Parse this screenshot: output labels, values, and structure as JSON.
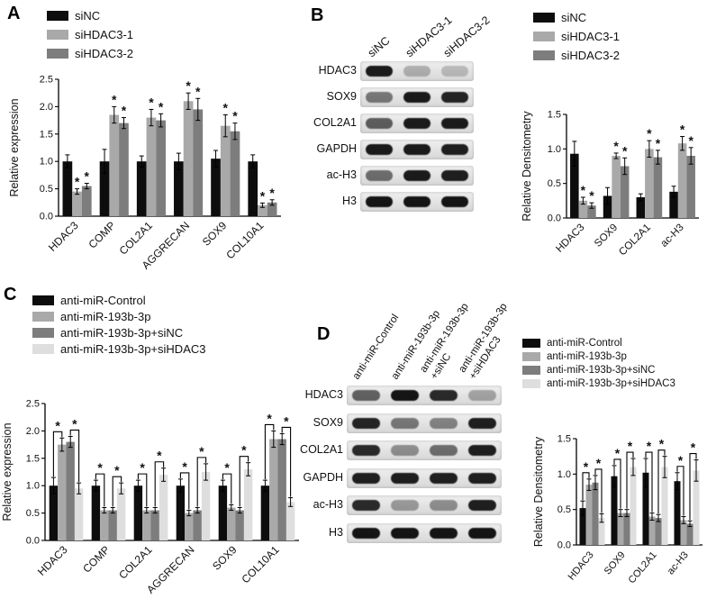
{
  "page": {
    "background": "#ffffff"
  },
  "colors": {
    "series_black": "#0d0d0d",
    "series_gray_light": "#a9a9a9",
    "series_gray_dark": "#7d7d7d",
    "series_gray_pale": "#dedede"
  },
  "panels": {
    "A": {
      "label": "A",
      "legend": [
        {
          "label": "siNC",
          "color": "#0d0d0d"
        },
        {
          "label": "siHDAC3-1",
          "color": "#a9a9a9"
        },
        {
          "label": "siHDAC3-2",
          "color": "#7d7d7d"
        }
      ]
    },
    "B": {
      "label": "B",
      "legend": [
        {
          "label": "siNC",
          "color": "#0d0d0d"
        },
        {
          "label": "siHDAC3-1",
          "color": "#a9a9a9"
        },
        {
          "label": "siHDAC3-2",
          "color": "#7d7d7d"
        }
      ],
      "blot": {
        "lanes": [
          "siNC",
          "siHDAC3-1",
          "siHDAC3-2"
        ],
        "rows": [
          {
            "label": "HDAC3",
            "bands": [
              0.92,
              0.25,
              0.2
            ]
          },
          {
            "label": "SOX9",
            "bands": [
              0.5,
              0.92,
              0.88
            ]
          },
          {
            "label": "COL2A1",
            "bands": [
              0.62,
              0.92,
              0.92
            ]
          },
          {
            "label": "GAPDH",
            "bands": [
              0.92,
              0.92,
              0.9
            ]
          },
          {
            "label": "ac-H3",
            "bands": [
              0.55,
              0.92,
              0.9
            ]
          },
          {
            "label": "H3",
            "bands": [
              0.95,
              0.95,
              0.95
            ]
          }
        ]
      }
    },
    "C": {
      "label": "C",
      "legend": [
        {
          "label": "anti-miR-Control",
          "color": "#0d0d0d"
        },
        {
          "label": "anti-miR-193b-3p",
          "color": "#a9a9a9"
        },
        {
          "label": "anti-miR-193b-3p+siNC",
          "color": "#7d7d7d"
        },
        {
          "label": "anti-miR-193b-3p+siHDAC3",
          "color": "#dedede"
        }
      ]
    },
    "D": {
      "label": "D",
      "legend": [
        {
          "label": "anti-miR-Control",
          "color": "#0d0d0d"
        },
        {
          "label": "anti-miR-193b-3p",
          "color": "#a9a9a9"
        },
        {
          "label": "anti-miR-193b-3p+siNC",
          "color": "#7d7d7d"
        },
        {
          "label": "anti-miR-193b-3p+siHDAC3",
          "color": "#dedede"
        }
      ],
      "blot": {
        "lanes": [
          "anti-miR-Control",
          "anti-miR-193b-3p",
          "anti-miR-193b-3p\n+siNC",
          "anti-miR-193b-3p\n+siHDAC3"
        ],
        "rows": [
          {
            "label": "HDAC3",
            "bands": [
              0.6,
              0.95,
              0.85,
              0.3
            ]
          },
          {
            "label": "SOX9",
            "bands": [
              0.88,
              0.5,
              0.45,
              0.9
            ]
          },
          {
            "label": "COL2A1",
            "bands": [
              0.85,
              0.4,
              0.55,
              0.9
            ]
          },
          {
            "label": "GAPDH",
            "bands": [
              0.9,
              0.9,
              0.9,
              0.9
            ]
          },
          {
            "label": "ac-H3",
            "bands": [
              0.85,
              0.35,
              0.4,
              0.9
            ]
          },
          {
            "label": "H3",
            "bands": [
              0.95,
              0.95,
              0.95,
              0.95
            ]
          }
        ]
      }
    }
  },
  "chart_data": [
    {
      "id": "A",
      "type": "bar",
      "title": "",
      "xlabel": "",
      "ylabel": "Relative expression",
      "ylim": [
        0,
        2.5
      ],
      "yticks": [
        0,
        0.5,
        1,
        1.5,
        2,
        2.5
      ],
      "grid": false,
      "legend_position": "top-left",
      "categories": [
        "HDAC3",
        "COMP",
        "COL2A1",
        "AGGRECAN",
        "SOX9",
        "COL10A1"
      ],
      "series": [
        {
          "name": "siNC",
          "color": "#0d0d0d",
          "values": [
            1.0,
            1.0,
            1.0,
            1.0,
            1.05,
            1.0
          ],
          "errors": [
            0.12,
            0.22,
            0.1,
            0.15,
            0.15,
            0.12
          ],
          "sig": [
            false,
            false,
            false,
            false,
            false,
            false
          ]
        },
        {
          "name": "siHDAC3-1",
          "color": "#a9a9a9",
          "values": [
            0.45,
            1.85,
            1.8,
            2.1,
            1.65,
            0.2
          ],
          "errors": [
            0.05,
            0.15,
            0.15,
            0.15,
            0.2,
            0.04
          ],
          "sig": [
            true,
            true,
            true,
            true,
            true,
            true
          ]
        },
        {
          "name": "siHDAC3-2",
          "color": "#7d7d7d",
          "values": [
            0.55,
            1.7,
            1.75,
            1.95,
            1.55,
            0.25
          ],
          "errors": [
            0.05,
            0.1,
            0.12,
            0.2,
            0.15,
            0.05
          ],
          "sig": [
            true,
            true,
            true,
            true,
            true,
            true
          ]
        }
      ],
      "significance": {
        "style": "star",
        "marker": "*"
      }
    },
    {
      "id": "B",
      "type": "bar",
      "title": "",
      "xlabel": "",
      "ylabel": "Relative Densitometry",
      "ylim": [
        0,
        1.5
      ],
      "yticks": [
        0,
        0.5,
        1,
        1.5
      ],
      "grid": false,
      "legend_position": "top",
      "categories": [
        "HDAC3",
        "SOX9",
        "COL2A1",
        "ac-H3"
      ],
      "series": [
        {
          "name": "siNC",
          "color": "#0d0d0d",
          "values": [
            0.93,
            0.32,
            0.3,
            0.38
          ],
          "errors": [
            0.18,
            0.12,
            0.05,
            0.08
          ],
          "sig": [
            false,
            false,
            false,
            false
          ]
        },
        {
          "name": "siHDAC3-1",
          "color": "#a9a9a9",
          "values": [
            0.25,
            0.9,
            1.0,
            1.08
          ],
          "errors": [
            0.05,
            0.04,
            0.12,
            0.1
          ],
          "sig": [
            true,
            true,
            true,
            true
          ]
        },
        {
          "name": "siHDAC3-2",
          "color": "#7d7d7d",
          "values": [
            0.18,
            0.75,
            0.88,
            0.9
          ],
          "errors": [
            0.04,
            0.12,
            0.1,
            0.12
          ],
          "sig": [
            true,
            true,
            true,
            true
          ]
        }
      ],
      "significance": {
        "style": "star",
        "marker": "*"
      }
    },
    {
      "id": "C",
      "type": "bar",
      "title": "",
      "xlabel": "",
      "ylabel": "Relative expression",
      "ylim": [
        0,
        2.5
      ],
      "yticks": [
        0,
        0.5,
        1,
        1.5,
        2,
        2.5
      ],
      "grid": false,
      "legend_position": "top-left",
      "categories": [
        "HDAC3",
        "COMP",
        "COL2A1",
        "AGGRECAN",
        "SOX9",
        "COL10A1"
      ],
      "series": [
        {
          "name": "anti-miR-Control",
          "color": "#0d0d0d",
          "values": [
            1.0,
            1.0,
            1.0,
            1.0,
            1.0,
            1.0
          ],
          "errors": [
            0.15,
            0.1,
            0.1,
            0.12,
            0.1,
            0.1
          ]
        },
        {
          "name": "anti-miR-193b-3p",
          "color": "#a9a9a9",
          "values": [
            1.75,
            0.55,
            0.55,
            0.5,
            0.6,
            1.85
          ],
          "errors": [
            0.12,
            0.05,
            0.05,
            0.05,
            0.05,
            0.15
          ]
        },
        {
          "name": "anti-miR-193b-3p+siNC",
          "color": "#7d7d7d",
          "values": [
            1.8,
            0.55,
            0.55,
            0.55,
            0.55,
            1.85
          ],
          "errors": [
            0.1,
            0.05,
            0.05,
            0.05,
            0.05,
            0.1
          ]
        },
        {
          "name": "anti-miR-193b-3p+siHDAC3",
          "color": "#dedede",
          "values": [
            0.95,
            0.95,
            1.2,
            1.25,
            1.3,
            0.7
          ],
          "errors": [
            0.1,
            0.1,
            0.12,
            0.15,
            0.12,
            0.08
          ]
        }
      ],
      "significance": {
        "style": "bracket",
        "marker": "*",
        "pairs": [
          [
            0,
            1
          ],
          [
            2,
            3
          ]
        ]
      }
    },
    {
      "id": "D",
      "type": "bar",
      "title": "",
      "xlabel": "",
      "ylabel": "Relative Densitometry",
      "ylim": [
        0,
        1.5
      ],
      "yticks": [
        0,
        0.5,
        1,
        1.5
      ],
      "grid": false,
      "legend_position": "top",
      "categories": [
        "HDAC3",
        "SOX9",
        "COL2A1",
        "ac-H3"
      ],
      "series": [
        {
          "name": "anti-miR-Control",
          "color": "#0d0d0d",
          "values": [
            0.52,
            0.97,
            1.02,
            0.9
          ],
          "errors": [
            0.1,
            0.15,
            0.2,
            0.12
          ]
        },
        {
          "name": "anti-miR-193b-3p",
          "color": "#a9a9a9",
          "values": [
            0.85,
            0.45,
            0.4,
            0.35
          ],
          "errors": [
            0.08,
            0.05,
            0.05,
            0.05
          ]
        },
        {
          "name": "anti-miR-193b-3p+siNC",
          "color": "#7d7d7d",
          "values": [
            0.88,
            0.45,
            0.38,
            0.3
          ],
          "errors": [
            0.1,
            0.05,
            0.05,
            0.04
          ]
        },
        {
          "name": "anti-miR-193b-3p+siHDAC3",
          "color": "#dedede",
          "values": [
            0.38,
            1.1,
            1.1,
            1.05
          ],
          "errors": [
            0.06,
            0.12,
            0.15,
            0.15
          ]
        }
      ],
      "significance": {
        "style": "bracket",
        "marker": "*",
        "pairs": [
          [
            0,
            1
          ],
          [
            2,
            3
          ]
        ]
      }
    }
  ]
}
